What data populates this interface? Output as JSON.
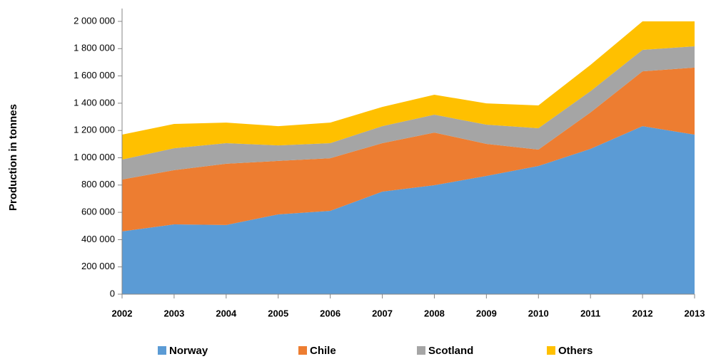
{
  "chart_data": {
    "type": "stacked_area",
    "y_label": "Production in tonnes",
    "categories": [
      "2002",
      "2003",
      "2004",
      "2005",
      "2006",
      "2007",
      "2008",
      "2009",
      "2010",
      "2011",
      "2012",
      "2013"
    ],
    "series": [
      {
        "name": "Norway",
        "color": "#5b9bd5",
        "values": [
          460000,
          512000,
          507000,
          585000,
          611000,
          752000,
          799000,
          867000,
          940000,
          1065000,
          1232000,
          1170000
        ]
      },
      {
        "name": "Chile",
        "color": "#ed7d31",
        "values": [
          381000,
          397000,
          449000,
          392000,
          386000,
          355000,
          386000,
          235000,
          120000,
          267000,
          402000,
          491000
        ]
      },
      {
        "name": "Scotland",
        "color": "#a5a5a5",
        "values": [
          146000,
          161000,
          151000,
          114000,
          110000,
          125000,
          131000,
          141000,
          157000,
          156000,
          157000,
          156000
        ]
      },
      {
        "name": "Others",
        "color": "#ffc000",
        "values": [
          183000,
          178000,
          151000,
          141000,
          151000,
          141000,
          146000,
          156000,
          167000,
          193000,
          209000,
          183000
        ]
      }
    ],
    "ylim": [
      0,
      2000000
    ],
    "yticks": [
      0,
      {
        "value": 200000,
        "label": "200 000"
      },
      {
        "value": 400000,
        "label": "400 000"
      },
      {
        "value": 600000,
        "label": "600 000"
      },
      {
        "value": 800000,
        "label": "800 000"
      },
      {
        "value": 1000000,
        "label": "1 000 000"
      },
      {
        "value": 1200000,
        "label": "1 200 000"
      },
      {
        "value": 1400000,
        "label": "1 400 000"
      },
      {
        "value": 1600000,
        "label": "1 600 000"
      },
      {
        "value": 1800000,
        "label": "1 800 000"
      },
      {
        "value": 2000000,
        "label": "2 000 000"
      }
    ],
    "legend": "bottom"
  }
}
